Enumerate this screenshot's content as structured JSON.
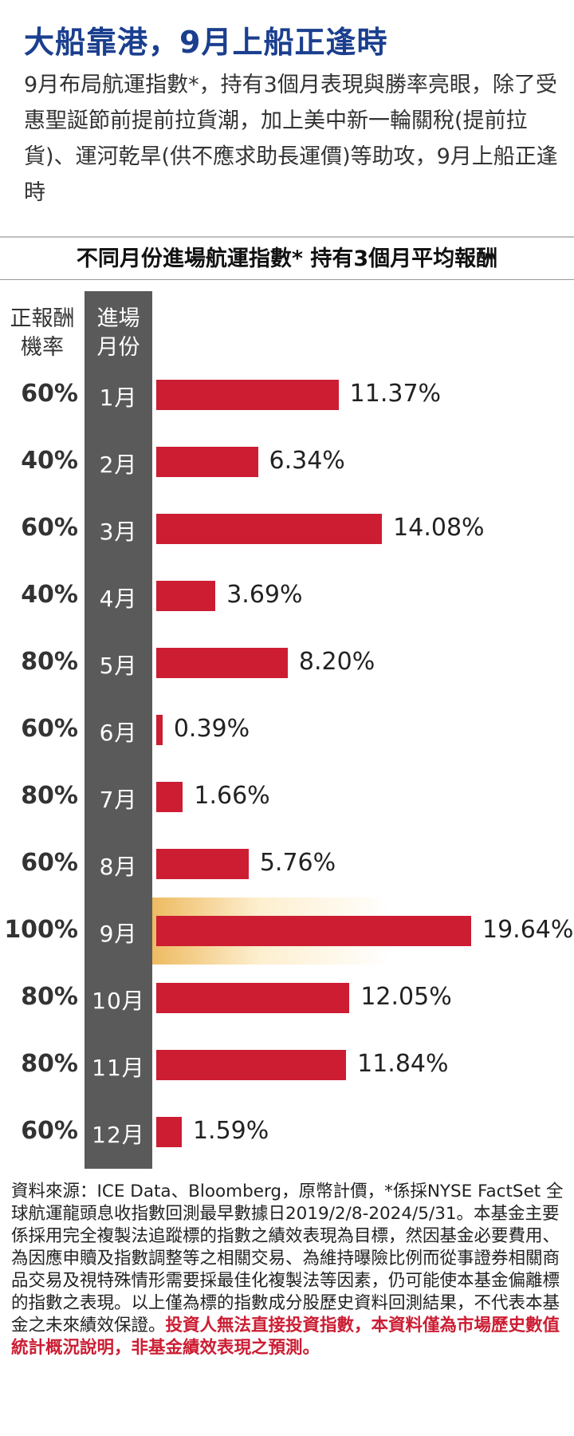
{
  "header": {
    "title": "大船靠港，9月上船正逢時",
    "intro": "9月布局航運指數*，持有3個月表現與勝率亮眼，除了受惠聖誕節前提前拉貨潮，加上美中新一輪關稅(提前拉貨)、運河乾旱(供不應求助長運價)等助攻，9月上船正逢時"
  },
  "chart_data": {
    "type": "bar",
    "orientation": "horizontal",
    "title": "不同月份進場航運指數*  持有3個月平均報酬",
    "col_head_prob": "正報酬\n機率",
    "col_head_month": "進場\n月份",
    "categories": [
      "1月",
      "2月",
      "3月",
      "4月",
      "5月",
      "6月",
      "7月",
      "8月",
      "9月",
      "10月",
      "11月",
      "12月"
    ],
    "values": [
      11.37,
      6.34,
      14.08,
      3.69,
      8.2,
      0.39,
      1.66,
      5.76,
      19.64,
      12.05,
      11.84,
      1.59
    ],
    "value_labels": [
      "11.37%",
      "6.34%",
      "14.08%",
      "3.69%",
      "8.20%",
      "0.39%",
      "1.66%",
      "5.76%",
      "19.64%",
      "12.05%",
      "11.84%",
      "1.59%"
    ],
    "win_rates": [
      "60%",
      "40%",
      "60%",
      "40%",
      "80%",
      "60%",
      "80%",
      "60%",
      "100%",
      "80%",
      "80%",
      "60%"
    ],
    "highlight_category": "9月",
    "bar_color": "#cc1d33",
    "band_color": "#5a5a5a",
    "highlight_color": "#ebaf46",
    "xlim": [
      0,
      19.64
    ]
  },
  "footnote": {
    "text": "資料來源：ICE Data、Bloomberg，原幣計價，*係採NYSE FactSet 全球航運龍頭息收指數回測最早數據日2019/2/8-2024/5/31。本基金主要係採用完全複製法追蹤標的指數之績效表現為目標，然因基金必要費用、為因應申贖及指數調整等之相關交易、為維持曝險比例而從事證券相關商品交易及視特殊情形需要採最佳化複製法等因素，仍可能使本基金偏離標的指數之表現。以上僅為標的指數成分股歷史資料回測結果，不代表本基金之未來績效保證。",
    "warning": "投資人無法直接投資指數，本資料僅為市場歷史數值統計概況說明，非基金績效表現之預測。"
  }
}
